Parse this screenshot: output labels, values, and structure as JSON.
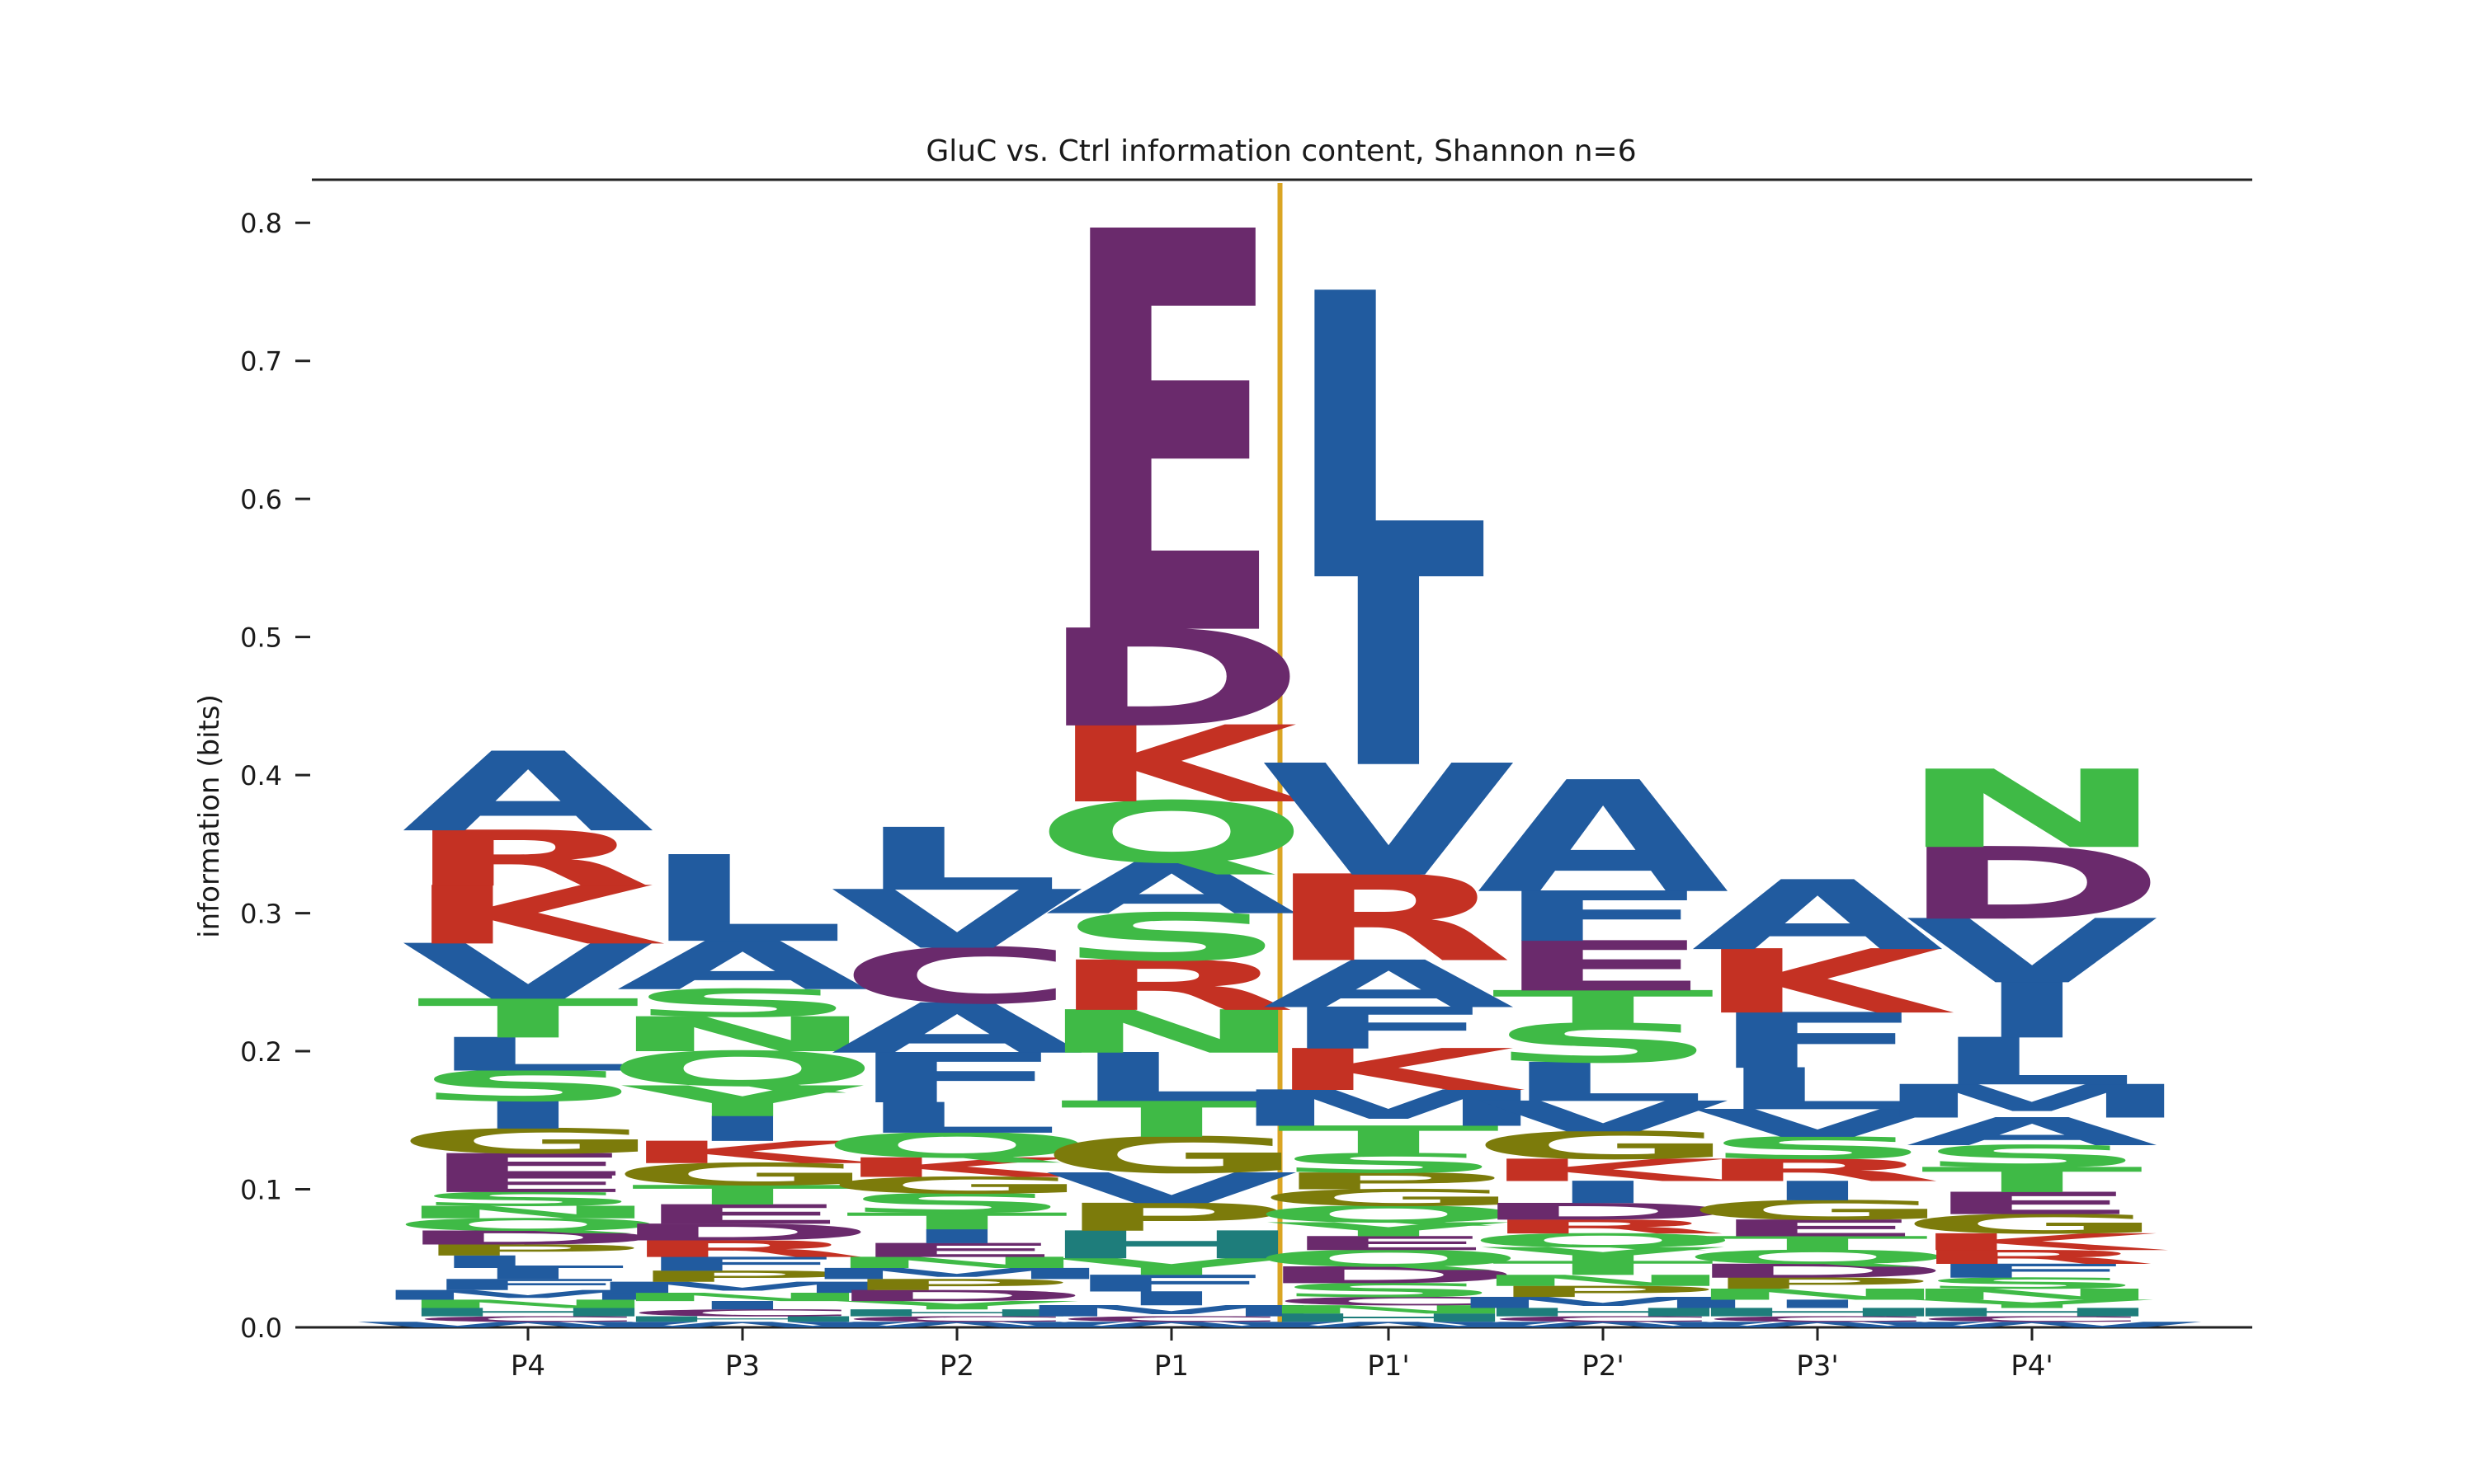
{
  "chart_data": {
    "type": "sequence-logo",
    "title": "GluC vs. Ctrl information content, Shannon n=6",
    "ylabel": "information (bits)",
    "xlabel": "",
    "ylim": [
      0,
      0.83
    ],
    "yticks": [
      "0.0",
      "0.1",
      "0.2",
      "0.3",
      "0.4",
      "0.5",
      "0.6",
      "0.7",
      "0.8"
    ],
    "categories": [
      "P4",
      "P3",
      "P2",
      "P1",
      "P1'",
      "P2'",
      "P3'",
      "P4'"
    ],
    "cleavage_line_between": [
      "P1",
      "P1'"
    ],
    "colors": {
      "blue": "#215b9f",
      "red": "#c43123",
      "green": "#3fba46",
      "purple": "#6a2a6c",
      "olive": "#7c7b0b",
      "teal": "#1e7d7b",
      "cleavage_line": "#daa523",
      "text": "#1a1a1a"
    },
    "residue_colors": {
      "A": "blue",
      "V": "blue",
      "L": "blue",
      "I": "blue",
      "M": "blue",
      "F": "blue",
      "W": "blue",
      "C": "purple",
      "R": "red",
      "K": "red",
      "H": "teal",
      "S": "green",
      "T": "green",
      "N": "green",
      "Q": "green",
      "Y": "green",
      "D": "purple",
      "E": "purple",
      "G": "olive",
      "P": "olive"
    },
    "positions": [
      {
        "name": "P4",
        "stack": [
          [
            "W",
            0.004
          ],
          [
            "C",
            0.004
          ],
          [
            "H",
            0.006
          ],
          [
            "N",
            0.006
          ],
          [
            "M",
            0.007
          ],
          [
            "F",
            0.008
          ],
          [
            "I",
            0.008
          ],
          [
            "L",
            0.009
          ],
          [
            "P",
            0.008
          ],
          [
            "D",
            0.01
          ],
          [
            "Q",
            0.009
          ],
          [
            "N",
            0.009
          ],
          [
            "S",
            0.01
          ],
          [
            "E",
            0.012
          ],
          [
            "E",
            0.016
          ],
          [
            "G",
            0.018
          ],
          [
            "I",
            0.02
          ],
          [
            "S",
            0.022
          ],
          [
            "L",
            0.024
          ],
          [
            "T",
            0.028
          ],
          [
            "V",
            0.04
          ],
          [
            "K",
            0.042
          ],
          [
            "R",
            0.04
          ],
          [
            "A",
            0.057
          ]
        ]
      },
      {
        "name": "P3",
        "stack": [
          [
            "W",
            0.004
          ],
          [
            "H",
            0.004
          ],
          [
            "C",
            0.005
          ],
          [
            "I",
            0.006
          ],
          [
            "N",
            0.006
          ],
          [
            "M",
            0.008
          ],
          [
            "P",
            0.008
          ],
          [
            "F",
            0.01
          ],
          [
            "R",
            0.012
          ],
          [
            "D",
            0.012
          ],
          [
            "E",
            0.014
          ],
          [
            "T",
            0.014
          ],
          [
            "G",
            0.016
          ],
          [
            "K",
            0.016
          ],
          [
            "I",
            0.018
          ],
          [
            "Y",
            0.022
          ],
          [
            "Q",
            0.025
          ],
          [
            "N",
            0.025
          ],
          [
            "S",
            0.02
          ],
          [
            "A",
            0.035
          ],
          [
            "L",
            0.062
          ]
        ]
      },
      {
        "name": "P2",
        "stack": [
          [
            "W",
            0.004
          ],
          [
            "C",
            0.004
          ],
          [
            "H",
            0.005
          ],
          [
            "Y",
            0.006
          ],
          [
            "D",
            0.008
          ],
          [
            "P",
            0.008
          ],
          [
            "M",
            0.008
          ],
          [
            "N",
            0.008
          ],
          [
            "E",
            0.01
          ],
          [
            "I",
            0.01
          ],
          [
            "T",
            0.012
          ],
          [
            "S",
            0.014
          ],
          [
            "G",
            0.012
          ],
          [
            "K",
            0.014
          ],
          [
            "Q",
            0.018
          ],
          [
            "L",
            0.022
          ],
          [
            "F",
            0.036
          ],
          [
            "A",
            0.036
          ],
          [
            "C",
            0.04
          ],
          [
            "V",
            0.042
          ],
          [
            "L",
            0.045
          ]
        ]
      },
      {
        "name": "P1",
        "stack": [
          [
            "W",
            0.004
          ],
          [
            "C",
            0.004
          ],
          [
            "M",
            0.008
          ],
          [
            "I",
            0.01
          ],
          [
            "F",
            0.012
          ],
          [
            "Y",
            0.012
          ],
          [
            "H",
            0.02
          ],
          [
            "P",
            0.02
          ],
          [
            "V",
            0.022
          ],
          [
            "G",
            0.026
          ],
          [
            "T",
            0.026
          ],
          [
            "L",
            0.035
          ],
          [
            "N",
            0.031
          ],
          [
            "R",
            0.036
          ],
          [
            "S",
            0.034
          ],
          [
            "A",
            0.037
          ],
          [
            "Q",
            0.044
          ],
          [
            "K",
            0.055
          ],
          [
            "D",
            0.07
          ],
          [
            "E",
            0.287
          ]
        ]
      },
      {
        "name": "P1'",
        "stack": [
          [
            "W",
            0.004
          ],
          [
            "H",
            0.006
          ],
          [
            "N",
            0.006
          ],
          [
            "C",
            0.006
          ],
          [
            "S",
            0.01
          ],
          [
            "D",
            0.012
          ],
          [
            "Q",
            0.012
          ],
          [
            "E",
            0.01
          ],
          [
            "Y",
            0.01
          ],
          [
            "Q",
            0.012
          ],
          [
            "G",
            0.012
          ],
          [
            "P",
            0.012
          ],
          [
            "S",
            0.014
          ],
          [
            "T",
            0.02
          ],
          [
            "M",
            0.026
          ],
          [
            "K",
            0.03
          ],
          [
            "F",
            0.03
          ],
          [
            "A",
            0.034
          ],
          [
            "R",
            0.062
          ],
          [
            "V",
            0.08
          ],
          [
            "I",
            0.136
          ],
          [
            "L",
            0.205
          ]
        ]
      },
      {
        "name": "P2'",
        "stack": [
          [
            "W",
            0.004
          ],
          [
            "C",
            0.004
          ],
          [
            "H",
            0.006
          ],
          [
            "M",
            0.008
          ],
          [
            "P",
            0.008
          ],
          [
            "N",
            0.008
          ],
          [
            "T",
            0.01
          ],
          [
            "Y",
            0.01
          ],
          [
            "Q",
            0.01
          ],
          [
            "R",
            0.01
          ],
          [
            "D",
            0.012
          ],
          [
            "I",
            0.016
          ],
          [
            "K",
            0.016
          ],
          [
            "G",
            0.02
          ],
          [
            "V",
            0.022
          ],
          [
            "L",
            0.028
          ],
          [
            "S",
            0.028
          ],
          [
            "T",
            0.024
          ],
          [
            "E",
            0.036
          ],
          [
            "F",
            0.036
          ],
          [
            "A",
            0.08
          ]
        ]
      },
      {
        "name": "P3'",
        "stack": [
          [
            "W",
            0.004
          ],
          [
            "C",
            0.004
          ],
          [
            "H",
            0.006
          ],
          [
            "I",
            0.006
          ],
          [
            "N",
            0.008
          ],
          [
            "P",
            0.008
          ],
          [
            "D",
            0.01
          ],
          [
            "Q",
            0.01
          ],
          [
            "T",
            0.01
          ],
          [
            "E",
            0.012
          ],
          [
            "G",
            0.014
          ],
          [
            "I",
            0.014
          ],
          [
            "R",
            0.016
          ],
          [
            "S",
            0.016
          ],
          [
            "V",
            0.02
          ],
          [
            "L",
            0.03
          ],
          [
            "F",
            0.04
          ],
          [
            "K",
            0.046
          ],
          [
            "A",
            0.05
          ]
        ]
      },
      {
        "name": "P4'",
        "stack": [
          [
            "W",
            0.004
          ],
          [
            "C",
            0.004
          ],
          [
            "H",
            0.006
          ],
          [
            "Y",
            0.006
          ],
          [
            "N",
            0.008
          ],
          [
            "S",
            0.008
          ],
          [
            "F",
            0.01
          ],
          [
            "R",
            0.01
          ],
          [
            "K",
            0.012
          ],
          [
            "G",
            0.014
          ],
          [
            "E",
            0.016
          ],
          [
            "T",
            0.018
          ],
          [
            "S",
            0.016
          ],
          [
            "A",
            0.02
          ],
          [
            "M",
            0.024
          ],
          [
            "L",
            0.034
          ],
          [
            "I",
            0.04
          ],
          [
            "V",
            0.046
          ],
          [
            "D",
            0.052
          ],
          [
            "N",
            0.056
          ]
        ]
      }
    ]
  }
}
